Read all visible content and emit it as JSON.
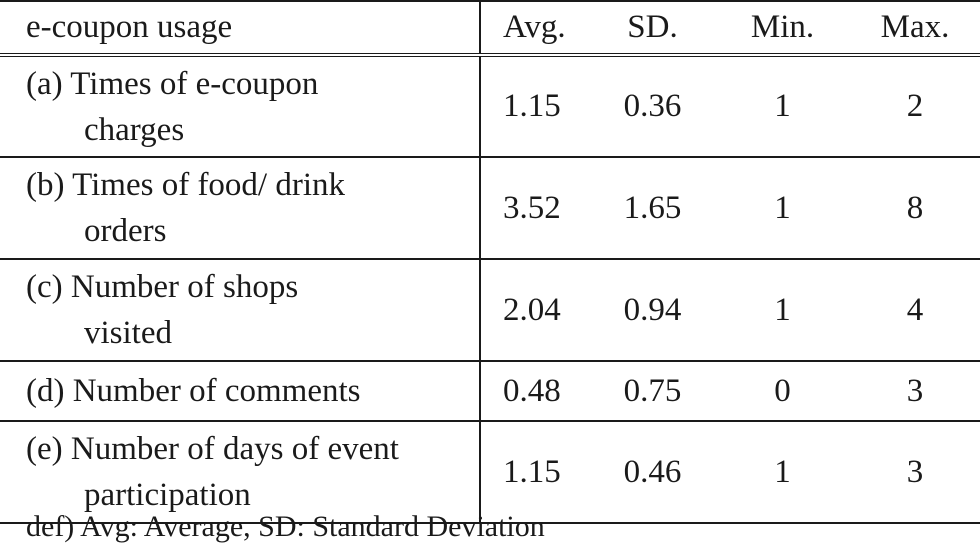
{
  "table": {
    "headers": {
      "label": "e-coupon usage",
      "avg": "Avg.",
      "sd": "SD.",
      "min": "Min.",
      "max": "Max."
    },
    "rows": [
      {
        "label_line1": "(a) Times of e-coupon",
        "label_line2": "charges",
        "avg": "1.15",
        "sd": "0.36",
        "min": "1",
        "max": "2"
      },
      {
        "label_line1": "(b) Times of food/ drink",
        "label_line2": "orders",
        "avg": "3.52",
        "sd": "1.65",
        "min": "1",
        "max": "8"
      },
      {
        "label_line1": "(c) Number of shops",
        "label_line2": "visited",
        "avg": "2.04",
        "sd": "0.94",
        "min": "1",
        "max": "4"
      },
      {
        "label_line1": "(d) Number of comments",
        "label_line2": "",
        "avg": "0.48",
        "sd": "0.75",
        "min": "0",
        "max": "3"
      },
      {
        "label_line1": "(e) Number of days of event",
        "label_line2": "participation",
        "avg": "1.15",
        "sd": "0.46",
        "min": "1",
        "max": "3"
      }
    ]
  },
  "footnote": "def) Avg: Average, SD: Standard Deviation"
}
